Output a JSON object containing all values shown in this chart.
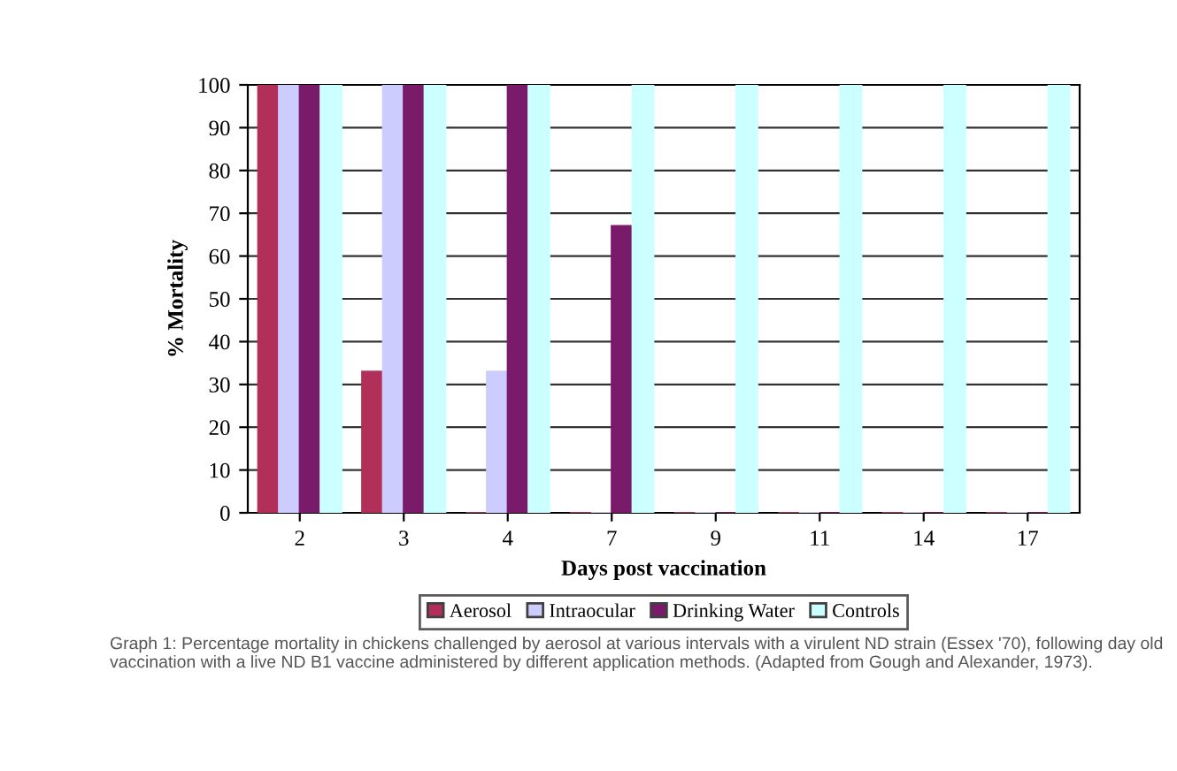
{
  "chart_data": {
    "type": "bar",
    "xlabel": "Days post vaccination",
    "ylabel": "% Mortality",
    "categories": [
      "2",
      "3",
      "4",
      "7",
      "9",
      "11",
      "14",
      "17"
    ],
    "series": [
      {
        "name": "Aerosol",
        "color": "#b0305a",
        "values": [
          100,
          33,
          0,
          0,
          0,
          0,
          0,
          0
        ]
      },
      {
        "name": "Intraocular",
        "color": "#ccccff",
        "values": [
          100,
          100,
          33,
          0,
          0,
          0,
          0,
          0
        ]
      },
      {
        "name": "Drinking Water",
        "color": "#7a1a6a",
        "values": [
          100,
          100,
          100,
          67,
          0,
          0,
          0,
          0
        ]
      },
      {
        "name": "Controls",
        "color": "#ccffff",
        "values": [
          100,
          100,
          100,
          100,
          100,
          100,
          100,
          100
        ]
      }
    ],
    "ylim": [
      0,
      100
    ],
    "yticks": [
      0,
      10,
      20,
      30,
      40,
      50,
      60,
      70,
      80,
      90,
      100
    ],
    "grid": "y",
    "legend": "bottom",
    "annotations": [
      "Graph 1: Percentage mortality in chickens challenged by aerosol at various intervals with a virulent ND strain (Essex '70), following day old vaccination with a live ND B1 vaccine administered by different application methods. (Adapted from Gough and Alexander, 1973)."
    ]
  }
}
